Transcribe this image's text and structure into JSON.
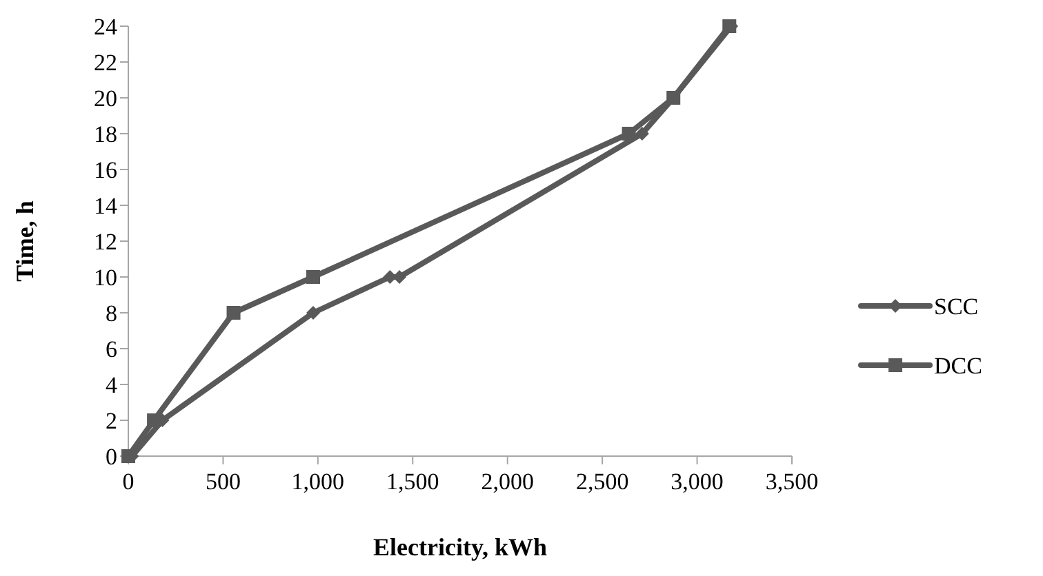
{
  "chart_data": {
    "type": "line",
    "xlabel": "Electricity, kWh",
    "ylabel": "Time, h",
    "xlim": [
      0,
      3500
    ],
    "ylim": [
      0,
      24
    ],
    "xticks": [
      {
        "value": 0,
        "label": "0"
      },
      {
        "value": 500,
        "label": "500"
      },
      {
        "value": 1000,
        "label": "1,000"
      },
      {
        "value": 1500,
        "label": "1,500"
      },
      {
        "value": 2000,
        "label": "2,000"
      },
      {
        "value": 2500,
        "label": "2,500"
      },
      {
        "value": 3000,
        "label": "3,000"
      },
      {
        "value": 3500,
        "label": "3,500"
      }
    ],
    "yticks": [
      0,
      2,
      4,
      6,
      8,
      10,
      12,
      14,
      16,
      18,
      20,
      22,
      24
    ],
    "grid": false,
    "legend": "right",
    "series": [
      {
        "name": "SCC",
        "color": "#595959",
        "marker": "diamond",
        "x": [
          20,
          180,
          975,
          1380,
          1430,
          2710,
          2875,
          3180
        ],
        "values": [
          0,
          2,
          8,
          10,
          10,
          18,
          20,
          24
        ]
      },
      {
        "name": "DCC",
        "color": "#595959",
        "marker": "square",
        "x": [
          0,
          135,
          555,
          975,
          2640,
          2875,
          3170
        ],
        "values": [
          0,
          2,
          8,
          10,
          18,
          20,
          24
        ]
      }
    ]
  }
}
